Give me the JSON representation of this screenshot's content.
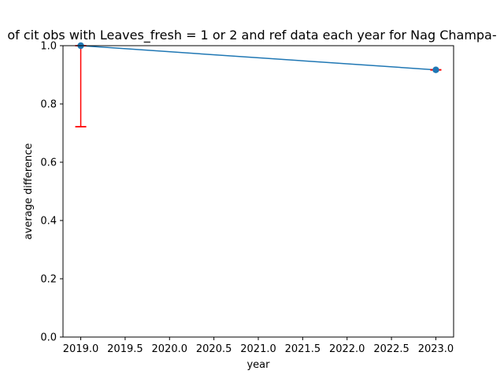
{
  "chart_data": {
    "type": "line",
    "title": "of cit obs with Leaves_fresh = 1 or 2 and ref data each year for Nag Champa-",
    "xlabel": "year",
    "ylabel": "average difference",
    "xlim": [
      2018.8,
      2023.2
    ],
    "ylim": [
      0.0,
      1.0
    ],
    "x_ticks": [
      "2019.0",
      "2019.5",
      "2020.0",
      "2020.5",
      "2021.0",
      "2021.5",
      "2022.0",
      "2022.5",
      "2023.0"
    ],
    "y_ticks": [
      "0.0",
      "0.2",
      "0.4",
      "0.6",
      "0.8",
      "1.0"
    ],
    "grid": false,
    "series": [
      {
        "x": [
          2019.0,
          2023.0
        ],
        "y": [
          1.0,
          0.917
        ],
        "error_lower": [
          0.278,
          0.0
        ],
        "error_upper": [
          0.0,
          0.0
        ],
        "line_color": "#1f77b4",
        "marker_color": "#1f77b4",
        "error_color": "#ff0000"
      }
    ]
  }
}
